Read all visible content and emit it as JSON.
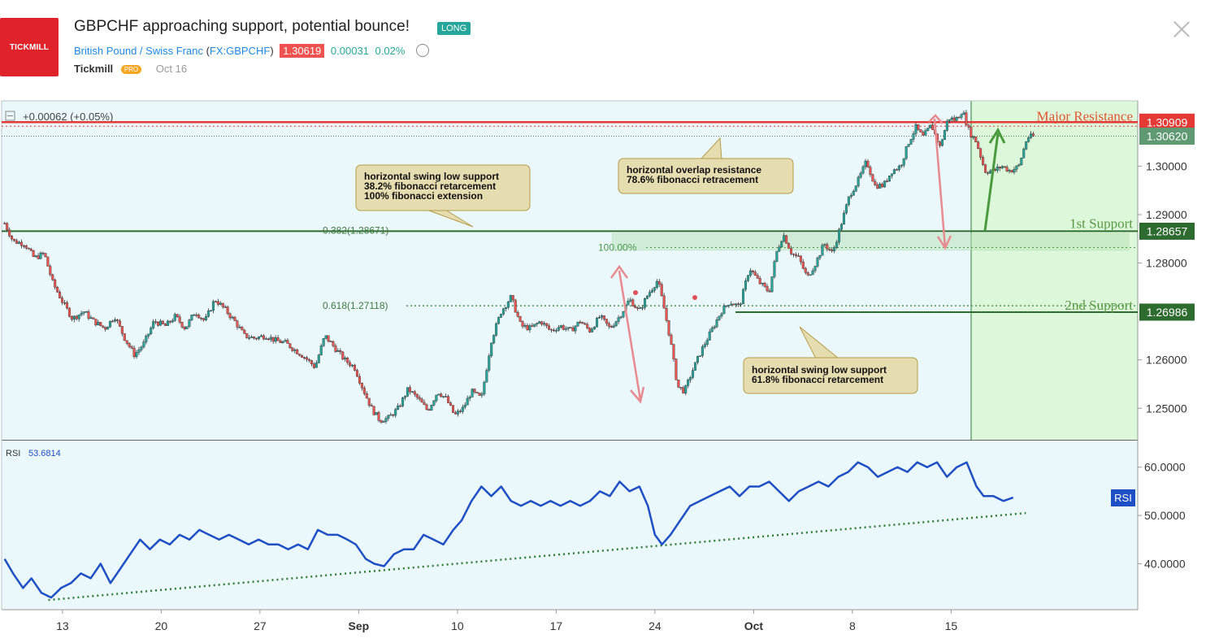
{
  "header": {
    "logo_text": "TICKMILL",
    "title": "GBPCHF approaching support, potential bounce!",
    "badge": "LONG",
    "symbol_name": "British Pound / Swiss Franc",
    "symbol_code_open": "(",
    "symbol_code": "FX:GBPCHF",
    "symbol_code_close": ")",
    "last_price": "1.30619",
    "change": "0.00031",
    "change_pct": "0.02%",
    "author": "Tickmill",
    "author_badge": "PRO",
    "date": "Oct 16"
  },
  "colors": {
    "accent": "#1e88e5",
    "resistance": "#e53935",
    "support": "#2e7d32",
    "up_candle": "#26a69a",
    "down_candle": "#ef5350",
    "chart_bg": "#eaf7fb",
    "target_zone": "#dcf7d9",
    "rsi_line": "#1e4fc4"
  },
  "chart_data": [
    {
      "type": "candlestick",
      "symbol": "GBPCHF",
      "change_readout": "+0.00062 (+0.05%)",
      "ylim": [
        1.2435,
        1.3135
      ],
      "y_ticks": [
        "1.30000",
        "1.29000",
        "1.28000",
        "1.26000",
        "1.25000"
      ],
      "x_tick_labels": [
        {
          "label": "13",
          "day": 13
        },
        {
          "label": "20",
          "day": 20
        },
        {
          "label": "27",
          "day": 27
        },
        {
          "label": "Sep",
          "day": 34,
          "bold": true
        },
        {
          "label": "10",
          "day": 41
        },
        {
          "label": "17",
          "day": 48
        },
        {
          "label": "24",
          "day": 55
        },
        {
          "label": "Oct",
          "day": 62,
          "bold": true
        },
        {
          "label": "8",
          "day": 69
        },
        {
          "label": "15",
          "day": 76
        }
      ],
      "x_domain": [
        8.8,
        89.0
      ],
      "price_path": [
        [
          8.9,
          1.2882
        ],
        [
          9.5,
          1.2845
        ],
        [
          10.3,
          1.284
        ],
        [
          11.0,
          1.281
        ],
        [
          11.7,
          1.282
        ],
        [
          12.3,
          1.276
        ],
        [
          13.0,
          1.272
        ],
        [
          13.7,
          1.2685
        ],
        [
          14.5,
          1.27
        ],
        [
          15.2,
          1.268
        ],
        [
          16.0,
          1.2665
        ],
        [
          16.7,
          1.269
        ],
        [
          17.4,
          1.2645
        ],
        [
          18.1,
          1.261
        ],
        [
          18.8,
          1.2635
        ],
        [
          19.5,
          1.268
        ],
        [
          20.3,
          1.267
        ],
        [
          21.0,
          1.269
        ],
        [
          21.7,
          1.2665
        ],
        [
          22.4,
          1.27
        ],
        [
          23.1,
          1.268
        ],
        [
          23.8,
          1.2725
        ],
        [
          24.5,
          1.2705
        ],
        [
          25.2,
          1.268
        ],
        [
          25.9,
          1.265
        ],
        [
          26.6,
          1.2645
        ],
        [
          27.4,
          1.265
        ],
        [
          28.1,
          1.264
        ],
        [
          28.8,
          1.2635
        ],
        [
          29.5,
          1.262
        ],
        [
          30.2,
          1.2605
        ],
        [
          30.9,
          1.2585
        ],
        [
          31.6,
          1.265
        ],
        [
          32.3,
          1.2625
        ],
        [
          33.0,
          1.26
        ],
        [
          33.7,
          1.2585
        ],
        [
          34.3,
          1.254
        ],
        [
          34.9,
          1.25
        ],
        [
          35.5,
          1.2475
        ],
        [
          36.1,
          1.248
        ],
        [
          36.8,
          1.25
        ],
        [
          37.5,
          1.254
        ],
        [
          38.2,
          1.252
        ],
        [
          38.9,
          1.2495
        ],
        [
          39.6,
          1.2535
        ],
        [
          40.2,
          1.252
        ],
        [
          40.8,
          1.2485
        ],
        [
          41.4,
          1.25
        ],
        [
          42.0,
          1.2535
        ],
        [
          42.7,
          1.252
        ],
        [
          43.4,
          1.264
        ],
        [
          44.1,
          1.27
        ],
        [
          44.8,
          1.273
        ],
        [
          45.5,
          1.267
        ],
        [
          46.2,
          1.2665
        ],
        [
          46.9,
          1.268
        ],
        [
          47.6,
          1.266
        ],
        [
          48.3,
          1.267
        ],
        [
          49.0,
          1.266
        ],
        [
          49.7,
          1.268
        ],
        [
          50.4,
          1.266
        ],
        [
          51.1,
          1.269
        ],
        [
          51.8,
          1.2665
        ],
        [
          52.5,
          1.269
        ],
        [
          53.2,
          1.2725
        ],
        [
          53.9,
          1.27
        ],
        [
          54.5,
          1.2735
        ],
        [
          55.2,
          1.2765
        ],
        [
          55.7,
          1.27
        ],
        [
          56.1,
          1.264
        ],
        [
          56.6,
          1.2545
        ],
        [
          57.1,
          1.2535
        ],
        [
          57.7,
          1.258
        ],
        [
          58.3,
          1.262
        ],
        [
          59.0,
          1.266
        ],
        [
          59.7,
          1.27
        ],
        [
          60.3,
          1.272
        ],
        [
          61.0,
          1.271
        ],
        [
          61.7,
          1.279
        ],
        [
          62.4,
          1.276
        ],
        [
          63.1,
          1.274
        ],
        [
          63.6,
          1.282
        ],
        [
          64.1,
          1.286
        ],
        [
          64.7,
          1.282
        ],
        [
          65.2,
          1.281
        ],
        [
          65.8,
          1.277
        ],
        [
          66.4,
          1.28
        ],
        [
          67.0,
          1.284
        ],
        [
          67.6,
          1.282
        ],
        [
          68.2,
          1.288
        ],
        [
          68.8,
          1.294
        ],
        [
          69.4,
          1.297
        ],
        [
          70.0,
          1.301
        ],
        [
          70.6,
          1.296
        ],
        [
          71.2,
          1.296
        ],
        [
          71.8,
          1.299
        ],
        [
          72.4,
          1.3
        ],
        [
          73.0,
          1.305
        ],
        [
          73.5,
          1.308
        ],
        [
          74.0,
          1.306
        ],
        [
          74.6,
          1.3085
        ],
        [
          75.2,
          1.304
        ],
        [
          75.8,
          1.31
        ],
        [
          76.3,
          1.3095
        ],
        [
          76.8,
          1.3115
        ],
        [
          77.3,
          1.307
        ],
        [
          77.8,
          1.305
        ],
        [
          78.4,
          1.299
        ],
        [
          79.0,
          1.299
        ],
        [
          79.6,
          1.3
        ],
        [
          80.2,
          1.299
        ],
        [
          80.8,
          1.3
        ],
        [
          81.4,
          1.306
        ],
        [
          82.0,
          1.3062
        ]
      ],
      "levels": [
        {
          "name": "Major Resistance",
          "price": 1.30909,
          "label": "1.30909"
        },
        {
          "name": "1st Support",
          "price": 1.28657,
          "label": "1.28657"
        },
        {
          "name": "2nd Support",
          "price": 1.26986,
          "label": "1.26986"
        }
      ],
      "current_price": {
        "price": 1.3062,
        "label": "1.30620"
      },
      "fib_levels": [
        {
          "label": "0.382(1.28671)",
          "price": 1.28671
        },
        {
          "label": "100.00%",
          "price": 1.2832
        },
        {
          "label": "0.618(1.27118)",
          "price": 1.27118
        }
      ],
      "annotations": [
        {
          "lines": [
            "horizontal swing low support",
            "38.2% fibonacci retarcement",
            "100% fibonacci extension"
          ]
        },
        {
          "lines": [
            "horizontal overlap resistance",
            "78.6% fibonacci retracement"
          ]
        },
        {
          "lines": [
            "horizontal swing low support",
            "61.8% fibonacci retarcement"
          ]
        }
      ]
    },
    {
      "type": "line",
      "name": "RSI",
      "value_label": "53.6814",
      "axis_badge": "RSI",
      "ylim": [
        30.5,
        65.5
      ],
      "y_ticks": [
        "60.0000",
        "50.0000",
        "40.0000"
      ],
      "series": [
        {
          "name": "RSI",
          "points": [
            [
              8.9,
              41
            ],
            [
              9.5,
              38
            ],
            [
              10.2,
              35
            ],
            [
              10.8,
              37
            ],
            [
              11.5,
              34
            ],
            [
              12.2,
              33
            ],
            [
              12.9,
              35
            ],
            [
              13.6,
              36
            ],
            [
              14.3,
              38
            ],
            [
              15.0,
              37
            ],
            [
              15.7,
              40
            ],
            [
              16.4,
              36
            ],
            [
              17.1,
              39
            ],
            [
              17.8,
              42
            ],
            [
              18.5,
              45
            ],
            [
              19.2,
              43
            ],
            [
              19.9,
              45
            ],
            [
              20.6,
              44
            ],
            [
              21.3,
              46
            ],
            [
              22.0,
              45
            ],
            [
              22.7,
              47
            ],
            [
              23.4,
              46
            ],
            [
              24.1,
              45
            ],
            [
              24.8,
              46
            ],
            [
              25.5,
              45
            ],
            [
              26.2,
              44
            ],
            [
              26.9,
              45
            ],
            [
              27.6,
              44
            ],
            [
              28.3,
              44
            ],
            [
              29.0,
              43
            ],
            [
              29.7,
              44
            ],
            [
              30.4,
              43
            ],
            [
              31.1,
              47
            ],
            [
              31.8,
              46
            ],
            [
              32.5,
              46
            ],
            [
              33.2,
              45
            ],
            [
              33.8,
              44
            ],
            [
              34.5,
              41
            ],
            [
              35.1,
              40
            ],
            [
              35.8,
              39.5
            ],
            [
              36.5,
              42
            ],
            [
              37.2,
              43
            ],
            [
              37.9,
              43
            ],
            [
              38.6,
              46
            ],
            [
              39.3,
              45
            ],
            [
              40.0,
              44
            ],
            [
              40.7,
              47
            ],
            [
              41.3,
              49
            ],
            [
              42.0,
              53
            ],
            [
              42.7,
              56
            ],
            [
              43.4,
              54
            ],
            [
              44.1,
              56
            ],
            [
              44.8,
              53
            ],
            [
              45.5,
              52
            ],
            [
              46.2,
              53
            ],
            [
              46.9,
              52
            ],
            [
              47.6,
              53
            ],
            [
              48.3,
              52
            ],
            [
              49.0,
              53
            ],
            [
              49.7,
              52
            ],
            [
              50.4,
              53
            ],
            [
              51.1,
              55
            ],
            [
              51.8,
              54
            ],
            [
              52.5,
              57
            ],
            [
              53.2,
              55
            ],
            [
              53.9,
              56
            ],
            [
              54.5,
              52
            ],
            [
              55.0,
              46
            ],
            [
              55.5,
              44
            ],
            [
              56.1,
              46
            ],
            [
              56.8,
              49
            ],
            [
              57.5,
              52
            ],
            [
              58.2,
              53
            ],
            [
              58.9,
              54
            ],
            [
              59.6,
              55
            ],
            [
              60.3,
              56
            ],
            [
              61.0,
              54
            ],
            [
              61.7,
              56
            ],
            [
              62.4,
              56
            ],
            [
              63.1,
              57
            ],
            [
              63.8,
              55
            ],
            [
              64.5,
              53
            ],
            [
              65.2,
              55
            ],
            [
              65.9,
              56
            ],
            [
              66.6,
              57
            ],
            [
              67.3,
              56
            ],
            [
              68.0,
              58
            ],
            [
              68.7,
              59
            ],
            [
              69.4,
              61
            ],
            [
              70.1,
              60
            ],
            [
              70.8,
              58
            ],
            [
              71.5,
              59
            ],
            [
              72.2,
              60
            ],
            [
              72.9,
              59
            ],
            [
              73.6,
              61
            ],
            [
              74.3,
              60
            ],
            [
              75.0,
              61
            ],
            [
              75.7,
              58
            ],
            [
              76.4,
              60
            ],
            [
              77.1,
              61
            ],
            [
              77.8,
              56
            ],
            [
              78.3,
              54
            ],
            [
              79.0,
              54
            ],
            [
              79.7,
              53
            ],
            [
              80.4,
              53.7
            ]
          ]
        }
      ],
      "trendline": [
        [
          12.0,
          32.5
        ],
        [
          81.3,
          50.5
        ]
      ]
    }
  ],
  "chart_labels": {
    "major_resistance": "Major Resistance",
    "first_support": "1st Support",
    "second_support": "2nd Support",
    "rsi_name": "RSI"
  }
}
